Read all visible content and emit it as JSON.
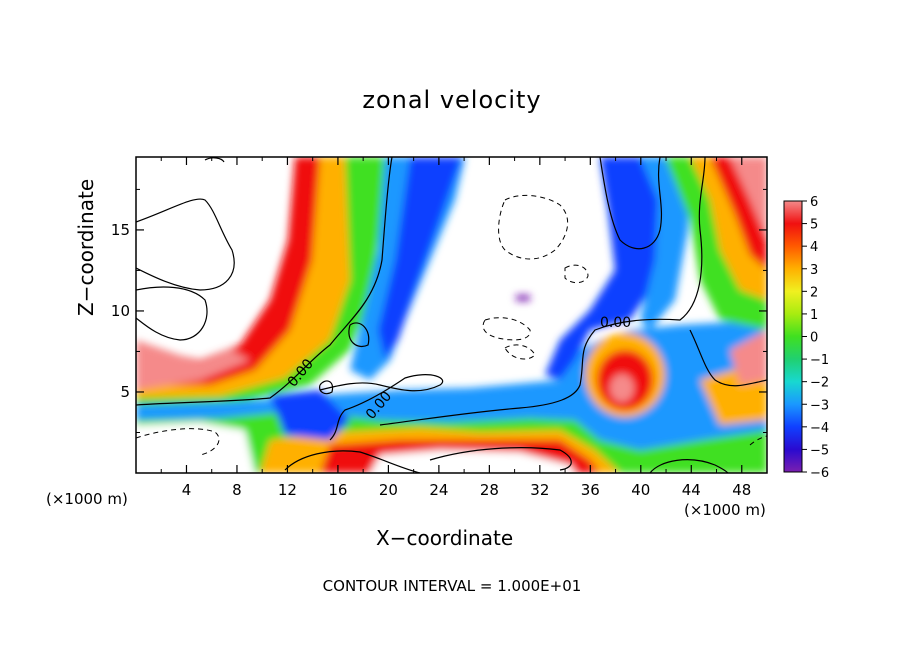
{
  "chart_data": {
    "type": "heatmap",
    "title": "zonal velocity",
    "xlabel": "X−coordinate",
    "ylabel": "Z−coordinate",
    "x_unit_left": "(×1000 m)",
    "x_unit_right": "(×1000 m)",
    "xlim": [
      0,
      50
    ],
    "ylim": [
      0,
      19.5
    ],
    "xticks": [
      4,
      8,
      12,
      16,
      20,
      24,
      28,
      32,
      36,
      40,
      44,
      48
    ],
    "yticks": [
      5,
      10,
      15
    ],
    "colorbar": {
      "ticks": [
        6,
        5,
        4,
        3,
        2,
        1,
        0,
        -1,
        -2,
        -3,
        -4,
        -5,
        -6
      ],
      "tick_labels": [
        "6",
        "5",
        "4",
        "3",
        "2",
        "1",
        "0",
        "−1",
        "−2",
        "−3",
        "−4",
        "−5",
        "−6"
      ],
      "range": [
        -6,
        6
      ],
      "colors": [
        "#7a1fb0",
        "#2a0ad0",
        "#1040ff",
        "#1a98ff",
        "#18d8d0",
        "#20d070",
        "#40e020",
        "#a8ec10",
        "#f0f020",
        "#ffb000",
        "#ff5a00",
        "#f01010",
        "#f58a8a"
      ]
    },
    "contour_labels": [
      {
        "text": "0.00",
        "x": 13.3,
        "y": 6.0,
        "angle": -50
      },
      {
        "text": "0.00",
        "x": 19.5,
        "y": 4.0,
        "angle": -50
      },
      {
        "text": "0.00",
        "x": 38.0,
        "y": 9.0,
        "angle": 0
      }
    ],
    "contour_interval_text": "CONTOUR INTERVAL =  1.000E+01",
    "grid": false,
    "legend": "colorbar-right"
  }
}
